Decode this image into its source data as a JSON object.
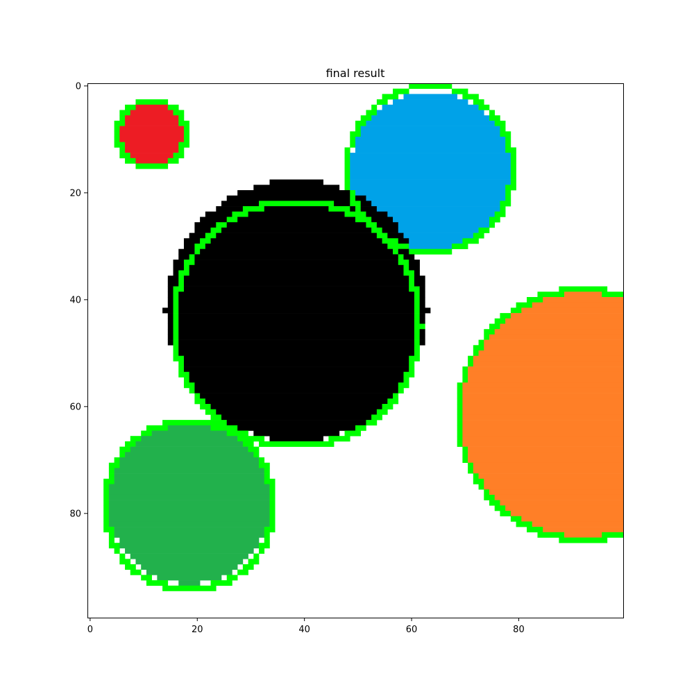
{
  "chart_data": {
    "type": "image",
    "title": "final result",
    "xlabel": "",
    "ylabel": "",
    "grid": false,
    "image_size": [
      100,
      100
    ],
    "xlim": [
      -0.5,
      99.5
    ],
    "ylim": [
      99.5,
      -0.5
    ],
    "x_ticks": [
      0,
      20,
      40,
      60,
      80
    ],
    "y_ticks": [
      0,
      20,
      40,
      60,
      80
    ],
    "background_color": "#ffffff",
    "outline_color": "#00ff00",
    "circles": [
      {
        "name": "red",
        "color": "#ed1c24",
        "cx": 11.5,
        "cy": 9.0,
        "r": 6.8
      },
      {
        "name": "blue",
        "color": "#00a2e8",
        "cx": 63.5,
        "cy": 16.0,
        "r": 15.0
      },
      {
        "name": "black",
        "color": "#000000",
        "cx": 38.5,
        "cy": 42.0,
        "r": 24.5
      },
      {
        "name": "orange",
        "color": "#ff7f27",
        "cx": 92.0,
        "cy": 61.0,
        "r": 23.5
      },
      {
        "name": "green",
        "color": "#22b14c",
        "cx": 18.5,
        "cy": 78.0,
        "r": 15.2
      }
    ],
    "outlines": [
      {
        "cx": 11.5,
        "cy": 9.0,
        "r": 6.3
      },
      {
        "cx": 63.5,
        "cy": 15.5,
        "r": 15.5
      },
      {
        "cx": 38.5,
        "cy": 44.5,
        "r": 23.0
      },
      {
        "cx": 92.0,
        "cy": 61.5,
        "r": 23.3
      },
      {
        "cx": 18.5,
        "cy": 78.5,
        "r": 15.7
      }
    ]
  }
}
